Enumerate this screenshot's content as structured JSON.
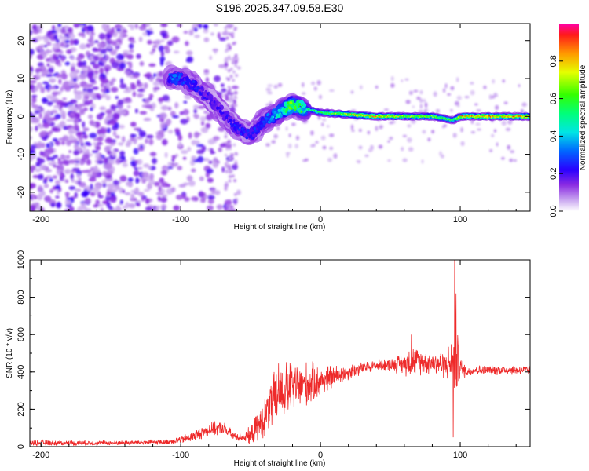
{
  "title": "S196.2025.347.09.58.E30",
  "chart_data": [
    {
      "type": "heatmap",
      "name": "spectrogram",
      "xlabel": "Height of straight line (km)",
      "ylabel": "Frequency (Hz)",
      "xlim": [
        -208,
        150
      ],
      "ylim": [
        -25,
        24.5
      ],
      "xticks": [
        -200,
        -100,
        0,
        100
      ],
      "yticks": [
        -20,
        -10,
        0,
        10,
        20
      ],
      "colorbar": {
        "label": "Normalized spectral amplitude",
        "range": [
          0,
          1
        ],
        "ticks": [
          "0.0",
          "0.2",
          "0.4",
          "0.6",
          "0.8"
        ],
        "tick_values": [
          0,
          0.2,
          0.4,
          0.6,
          0.8
        ]
      },
      "ridge": {
        "x": [
          -108,
          -100,
          -90,
          -80,
          -70,
          -60,
          -50,
          -40,
          -30,
          -20,
          -10,
          0,
          20,
          40,
          60,
          80,
          95,
          100,
          120,
          150
        ],
        "y": [
          10,
          10,
          8,
          5,
          1,
          -3,
          -5,
          -1,
          1,
          3,
          2,
          1,
          0.5,
          0,
          0,
          0,
          -1,
          0,
          0,
          0
        ],
        "amplitude": [
          0.35,
          0.3,
          0.25,
          0.2,
          0.2,
          0.25,
          0.25,
          0.3,
          0.45,
          0.7,
          0.55,
          0.6,
          0.8,
          0.85,
          0.75,
          0.7,
          0.6,
          0.9,
          0.9,
          0.9
        ]
      }
    },
    {
      "type": "line",
      "name": "snr",
      "xlabel": "Height of straight line (km)",
      "ylabel": "SNR (10 * v/v)",
      "xlim": [
        -208,
        150
      ],
      "ylim": [
        0,
        1000
      ],
      "xticks": [
        -200,
        -100,
        0,
        100
      ],
      "yticks": [
        0,
        200,
        400,
        600,
        800,
        1000
      ],
      "color": "#ee2a2a",
      "envelope": {
        "x": [
          -208,
          -150,
          -110,
          -95,
          -80,
          -70,
          -62,
          -55,
          -50,
          -40,
          -35,
          -30,
          -20,
          -10,
          0,
          10,
          20,
          30,
          40,
          50,
          60,
          65,
          70,
          80,
          90,
          95,
          97,
          100,
          105,
          110,
          130,
          150
        ],
        "y": [
          20,
          20,
          25,
          45,
          90,
          100,
          55,
          50,
          60,
          150,
          230,
          280,
          320,
          330,
          350,
          375,
          400,
          420,
          435,
          440,
          445,
          460,
          455,
          450,
          440,
          450,
          470,
          420,
          400,
          410,
          410,
          410
        ],
        "spread": [
          18,
          14,
          16,
          30,
          40,
          45,
          30,
          25,
          60,
          120,
          170,
          180,
          170,
          140,
          100,
          70,
          50,
          40,
          35,
          40,
          70,
          100,
          80,
          70,
          90,
          160,
          250,
          80,
          30,
          30,
          30,
          30
        ]
      },
      "peaks": [
        {
          "x": 96,
          "y": 1000
        },
        {
          "x": 97,
          "y": 820
        },
        {
          "x": 95,
          "y": 50
        },
        {
          "x": 65,
          "y": 600
        },
        {
          "x": -30,
          "y": 445
        }
      ]
    }
  ]
}
